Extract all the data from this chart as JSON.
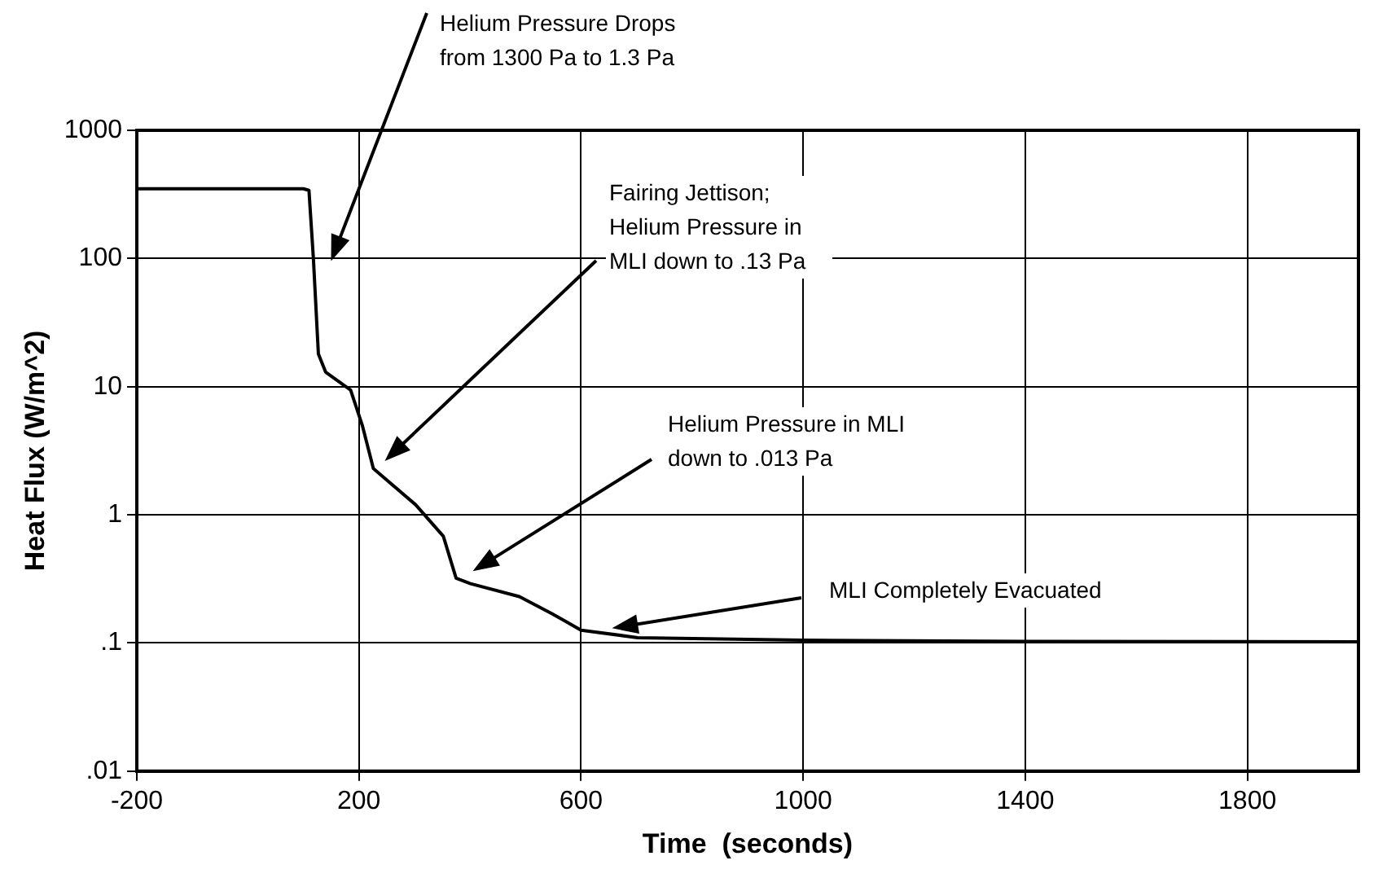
{
  "chart_data": {
    "type": "line",
    "xlabel": "Time  (seconds)",
    "ylabel": "Heat Flux (W/m^2)",
    "x": [
      -200,
      100,
      110,
      118,
      127,
      140,
      185,
      206,
      226,
      302,
      352,
      375,
      401,
      489,
      547,
      600,
      702,
      1000,
      1400,
      2000
    ],
    "series": [
      {
        "color": "#000000",
        "values": [
          350,
          350,
          340,
          100,
          18,
          13,
          9.4,
          5,
          2.3,
          1.2,
          0.68,
          0.32,
          0.29,
          0.23,
          0.17,
          0.126,
          0.11,
          0.105,
          0.103,
          0.102
        ]
      }
    ],
    "xlim": [
      -200,
      2000
    ],
    "xticks": [
      -200,
      200,
      600,
      1000,
      1400,
      1800
    ],
    "ylim": [
      0.01,
      1000
    ],
    "yticks": [
      {
        "value": 0.01,
        "label": ".01"
      },
      {
        "value": 0.1,
        "label": ".1"
      },
      1,
      10,
      100,
      1000
    ],
    "log": "y",
    "grid": true,
    "marker": "none",
    "line_style": "solid",
    "annotations": [
      "Helium Pressure Drops from 1300 Pa to 1.3 Pa",
      "Fairing Jettison; Helium Pressure in MLI down to .13 Pa",
      "Helium Pressure in MLI down to .013 Pa",
      "MLI Completely Evacuated"
    ]
  }
}
